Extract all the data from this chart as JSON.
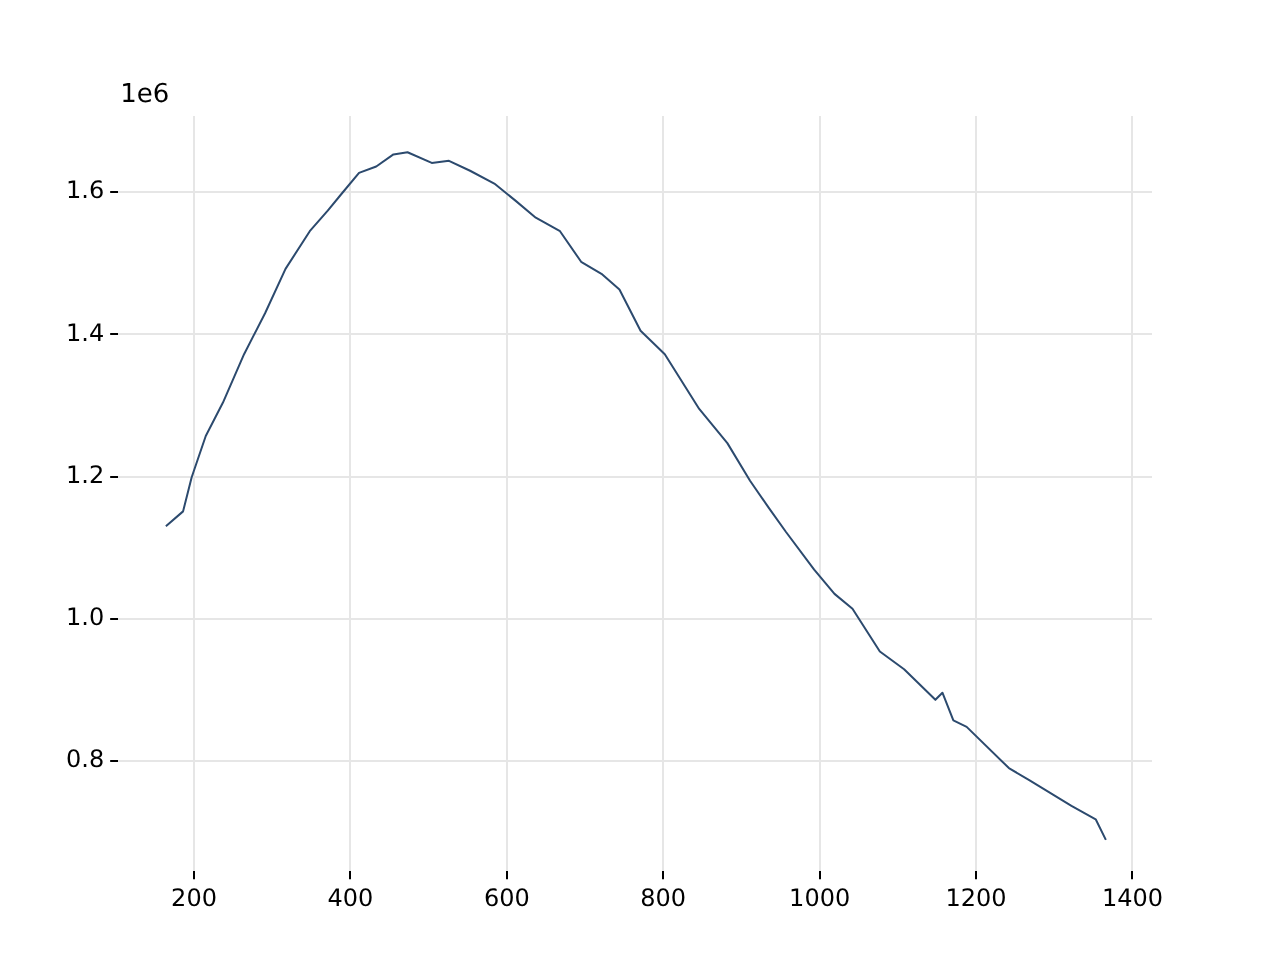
{
  "chart_data": {
    "type": "line",
    "annotations": [
      "1e6"
    ],
    "x": [
      164,
      186,
      197,
      215,
      237,
      264,
      291,
      317,
      348,
      371,
      389,
      411,
      433,
      455,
      473,
      504,
      526,
      553,
      584,
      611,
      637,
      668,
      695,
      721,
      744,
      771,
      802,
      846,
      882,
      911,
      935,
      957,
      993,
      1019,
      1042,
      1077,
      1108,
      1148,
      1157,
      1171,
      1188,
      1242,
      1268,
      1322,
      1353,
      1366
    ],
    "series": [
      {
        "color": "#2c4a6e",
        "values": [
          1.13,
          1.151,
          1.199,
          1.257,
          1.304,
          1.372,
          1.43,
          1.492,
          1.545,
          1.574,
          1.598,
          1.627,
          1.636,
          1.653,
          1.656,
          1.641,
          1.644,
          1.63,
          1.612,
          1.588,
          1.564,
          1.545,
          1.502,
          1.485,
          1.463,
          1.405,
          1.372,
          1.295,
          1.247,
          1.194,
          1.156,
          1.122,
          1.069,
          1.035,
          1.014,
          0.954,
          0.929,
          0.886,
          0.896,
          0.857,
          0.848,
          0.79,
          0.773,
          0.737,
          0.718,
          0.689
        ]
      }
    ],
    "xlim": [
      103,
      1425
    ],
    "xticks": [
      200,
      400,
      600,
      800,
      1000,
      1200,
      1400
    ],
    "ylim": [
      0.645,
      1.707
    ],
    "yticks": [
      {
        "value": 0.8,
        "label": "0.8"
      },
      {
        "value": 1.0,
        "label": "1.0"
      },
      {
        "value": 1.2,
        "label": "1.2"
      },
      {
        "value": 1.4,
        "label": "1.4"
      },
      {
        "value": 1.6,
        "label": "1.6"
      }
    ],
    "grid": true,
    "legend": false,
    "marker": "none",
    "line_style": "solid"
  }
}
